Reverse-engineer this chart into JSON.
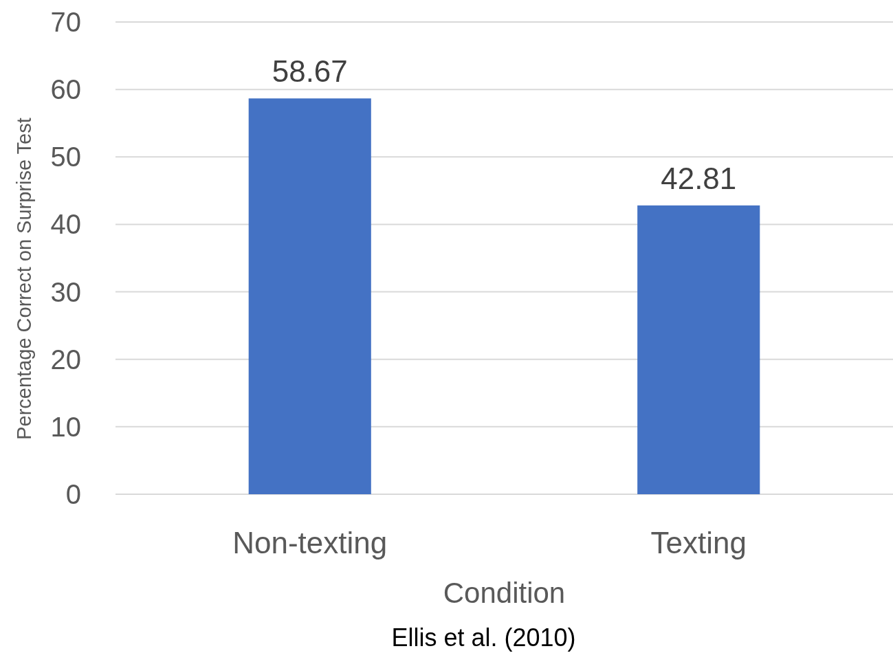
{
  "chart_data": {
    "type": "bar",
    "xlabel": "Condition",
    "ylabel": "Percentage Correct on Surprise Test",
    "categories": [
      "Non-texting",
      "Texting"
    ],
    "series": [
      {
        "color": "#4472c4",
        "values": [
          58.67,
          42.81
        ]
      }
    ],
    "ylim": [
      0,
      70
    ],
    "yticks": [
      0,
      10,
      20,
      30,
      40,
      50,
      60,
      70
    ],
    "grid": "y",
    "data_labels": true,
    "annotations": [
      "Ellis et al. (2010)"
    ]
  }
}
